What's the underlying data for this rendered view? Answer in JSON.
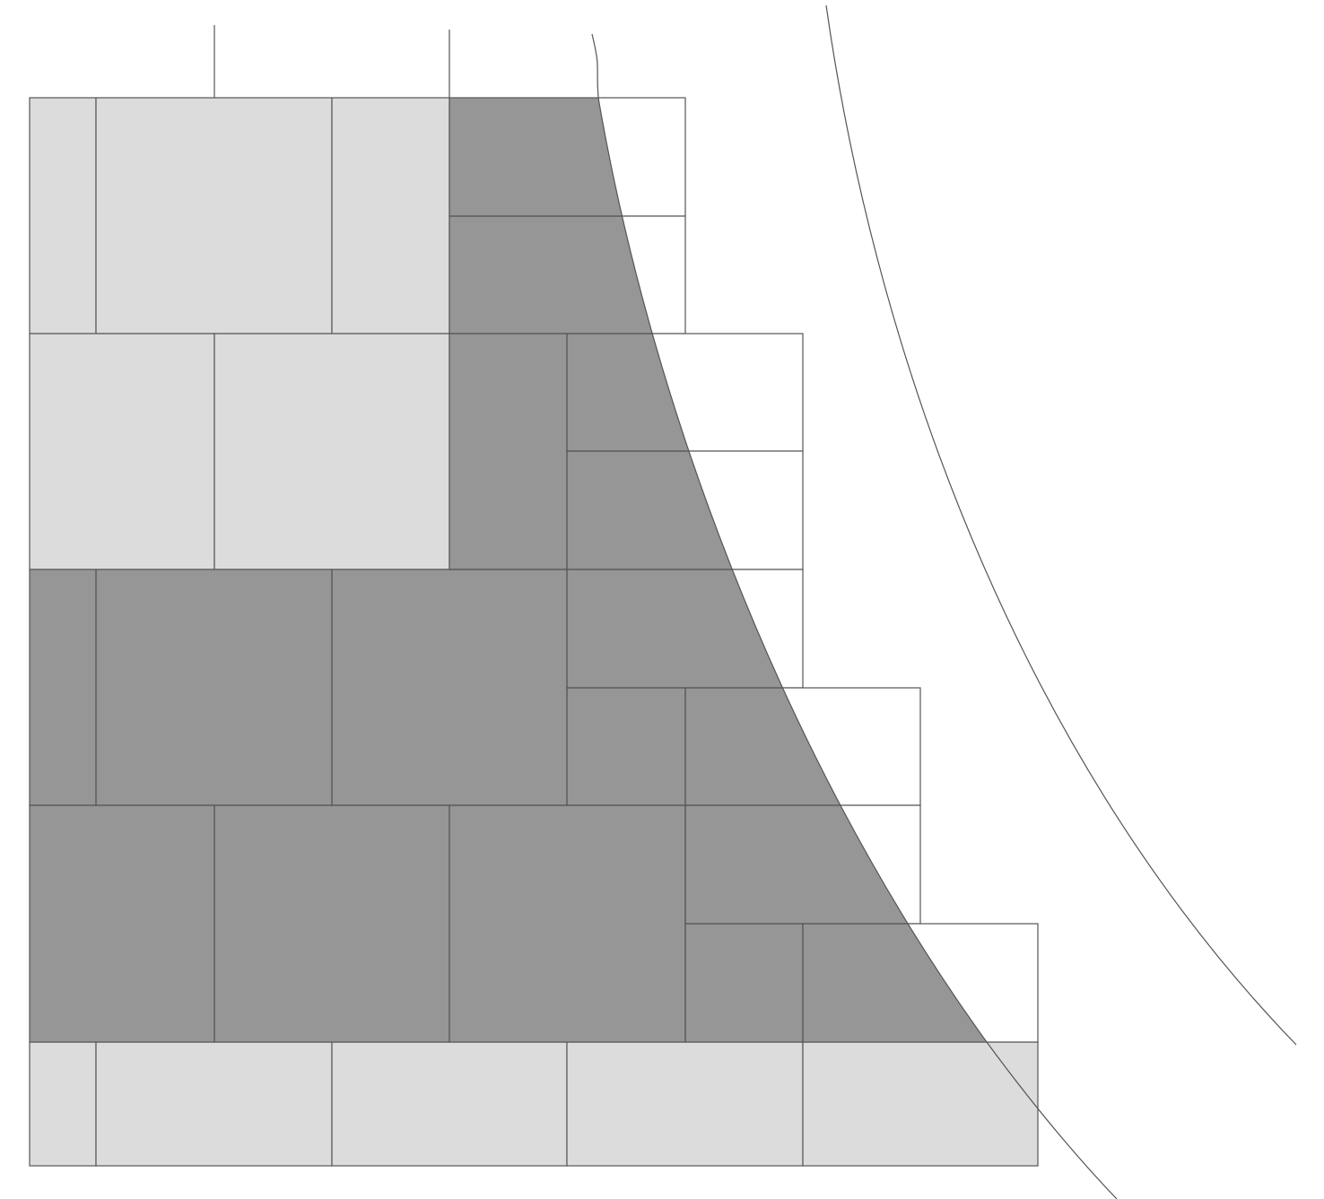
{
  "diagram": {
    "type": "tiling",
    "colors": {
      "background": "#ffffff",
      "light_tile": "#dcdcdc",
      "dark_tile": "#969696",
      "outline_tile": "#ffffff",
      "line": "#555555"
    }
  }
}
